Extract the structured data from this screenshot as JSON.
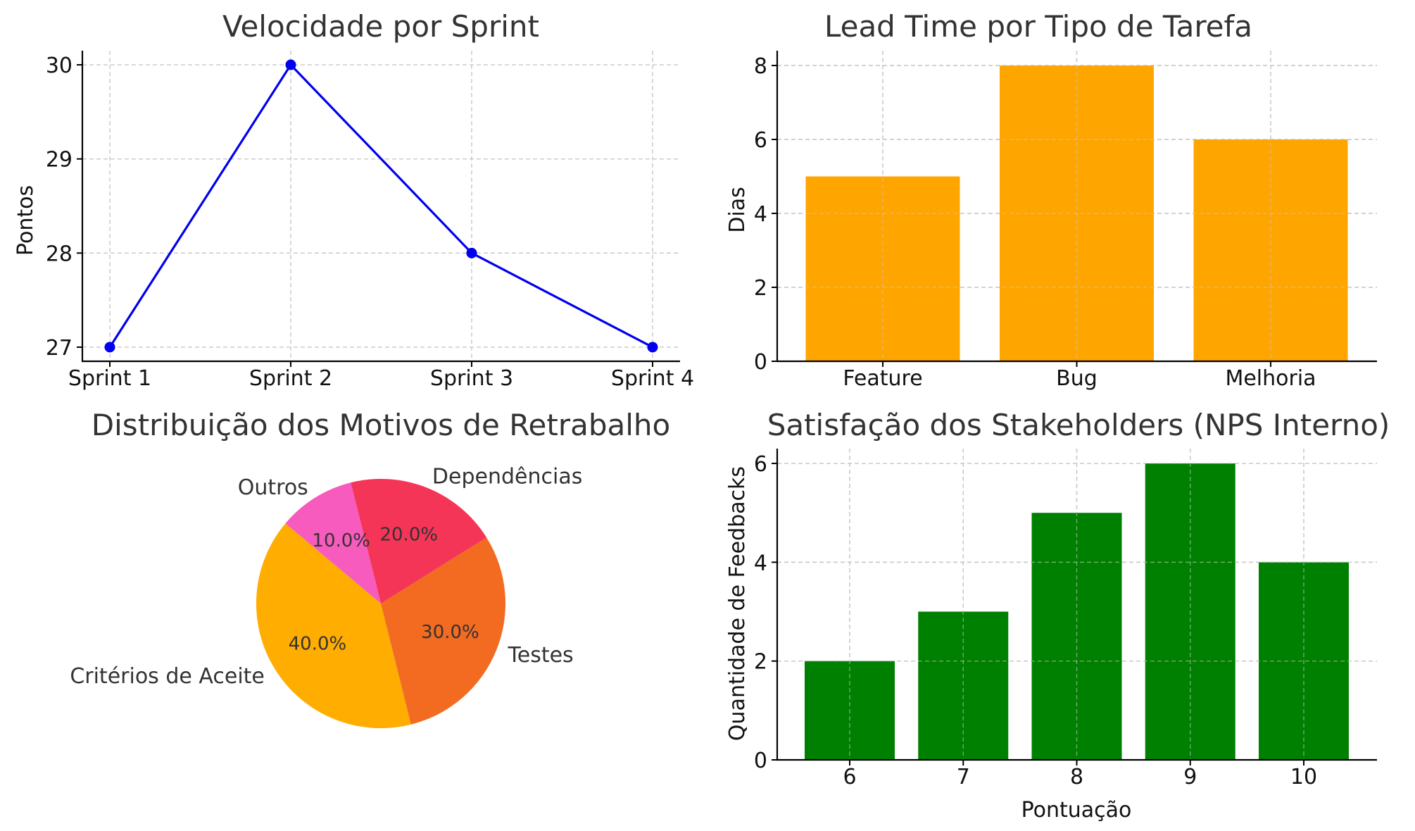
{
  "chart_data": [
    {
      "id": "velocity",
      "type": "line",
      "title": "Velocidade por Sprint",
      "xlabel": "",
      "ylabel": "Pontos",
      "categories": [
        "Sprint 1",
        "Sprint 2",
        "Sprint 3",
        "Sprint 4"
      ],
      "values": [
        27,
        30,
        28,
        27
      ],
      "ylim": [
        26.85,
        30.15
      ],
      "yticks": [
        27,
        28,
        29,
        30
      ],
      "grid": true,
      "color": "#0000ee"
    },
    {
      "id": "leadtime",
      "type": "bar",
      "title": "Lead Time por Tipo de Tarefa",
      "xlabel": "",
      "ylabel": "Dias",
      "categories": [
        "Feature",
        "Bug",
        "Melhoria"
      ],
      "values": [
        5,
        8,
        6
      ],
      "ylim": [
        0,
        8.4
      ],
      "yticks": [
        0,
        2,
        4,
        6,
        8
      ],
      "grid": true,
      "color": "#ffa500"
    },
    {
      "id": "rework",
      "type": "pie",
      "title": "Distribuição dos Motivos de Retrabalho",
      "labels": [
        "Critérios de Aceite",
        "Testes",
        "Dependências",
        "Outros"
      ],
      "values": [
        40,
        30,
        20,
        10
      ],
      "pct_labels": [
        "40.0%",
        "30.0%",
        "20.0%",
        "10.0%"
      ],
      "colors": [
        "#ffad00",
        "#f26b21",
        "#f53558",
        "#f75bbd"
      ],
      "startangle": 140
    },
    {
      "id": "nps",
      "type": "bar",
      "title": "Satisfação dos Stakeholders (NPS Interno)",
      "xlabel": "Pontuação",
      "ylabel": "Quantidade de Feedbacks",
      "categories": [
        "6",
        "7",
        "8",
        "9",
        "10"
      ],
      "values": [
        2,
        3,
        5,
        6,
        4
      ],
      "ylim": [
        0,
        6.3
      ],
      "yticks": [
        0,
        2,
        4,
        6
      ],
      "grid": true,
      "color": "#008000"
    }
  ]
}
